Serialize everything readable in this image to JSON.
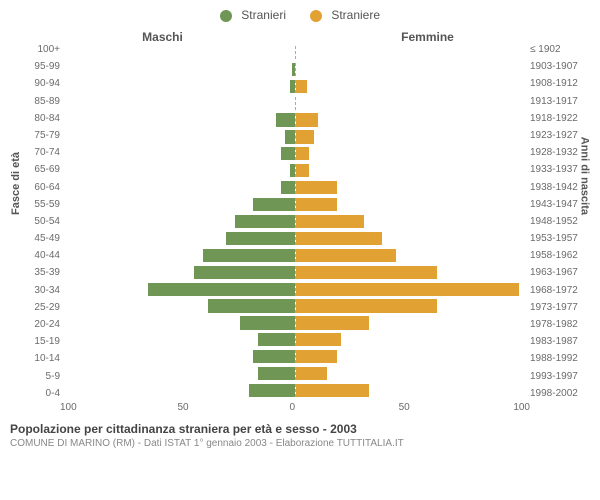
{
  "legend": {
    "male": {
      "label": "Stranieri",
      "color": "#6f9654"
    },
    "female": {
      "label": "Straniere",
      "color": "#e2a133"
    }
  },
  "headers": {
    "male": "Maschi",
    "female": "Femmine"
  },
  "axis_labels": {
    "left": "Fasce di età",
    "right": "Anni di nascita"
  },
  "x_axis": {
    "max": 100,
    "ticks": [
      "100",
      "50",
      "0",
      "50",
      "100"
    ]
  },
  "chart": {
    "type": "population-pyramid",
    "background": "#ffffff",
    "bar_height_ratio": 0.78,
    "divider_style": "dashed",
    "divider_color": "#aaaaaa"
  },
  "footer": {
    "title": "Popolazione per cittadinanza straniera per età e sesso - 2003",
    "subtitle": "COMUNE DI MARINO (RM) - Dati ISTAT 1° gennaio 2003 - Elaborazione TUTTITALIA.IT"
  },
  "rows": [
    {
      "age": "100+",
      "years": "≤ 1902",
      "m": 0,
      "f": 0
    },
    {
      "age": "95-99",
      "years": "1903-1907",
      "m": 1,
      "f": 0
    },
    {
      "age": "90-94",
      "years": "1908-1912",
      "m": 2,
      "f": 5
    },
    {
      "age": "85-89",
      "years": "1913-1917",
      "m": 0,
      "f": 0
    },
    {
      "age": "80-84",
      "years": "1918-1922",
      "m": 8,
      "f": 10
    },
    {
      "age": "75-79",
      "years": "1923-1927",
      "m": 4,
      "f": 8
    },
    {
      "age": "70-74",
      "years": "1928-1932",
      "m": 6,
      "f": 6
    },
    {
      "age": "65-69",
      "years": "1933-1937",
      "m": 2,
      "f": 6
    },
    {
      "age": "60-64",
      "years": "1938-1942",
      "m": 6,
      "f": 18
    },
    {
      "age": "55-59",
      "years": "1943-1947",
      "m": 18,
      "f": 18
    },
    {
      "age": "50-54",
      "years": "1948-1952",
      "m": 26,
      "f": 30
    },
    {
      "age": "45-49",
      "years": "1953-1957",
      "m": 30,
      "f": 38
    },
    {
      "age": "40-44",
      "years": "1958-1962",
      "m": 40,
      "f": 44
    },
    {
      "age": "35-39",
      "years": "1963-1967",
      "m": 44,
      "f": 62
    },
    {
      "age": "30-34",
      "years": "1968-1972",
      "m": 64,
      "f": 98
    },
    {
      "age": "25-29",
      "years": "1973-1977",
      "m": 38,
      "f": 62
    },
    {
      "age": "20-24",
      "years": "1978-1982",
      "m": 24,
      "f": 32
    },
    {
      "age": "15-19",
      "years": "1983-1987",
      "m": 16,
      "f": 20
    },
    {
      "age": "10-14",
      "years": "1988-1992",
      "m": 18,
      "f": 18
    },
    {
      "age": "5-9",
      "years": "1993-1997",
      "m": 16,
      "f": 14
    },
    {
      "age": "0-4",
      "years": "1998-2002",
      "m": 20,
      "f": 32
    }
  ]
}
